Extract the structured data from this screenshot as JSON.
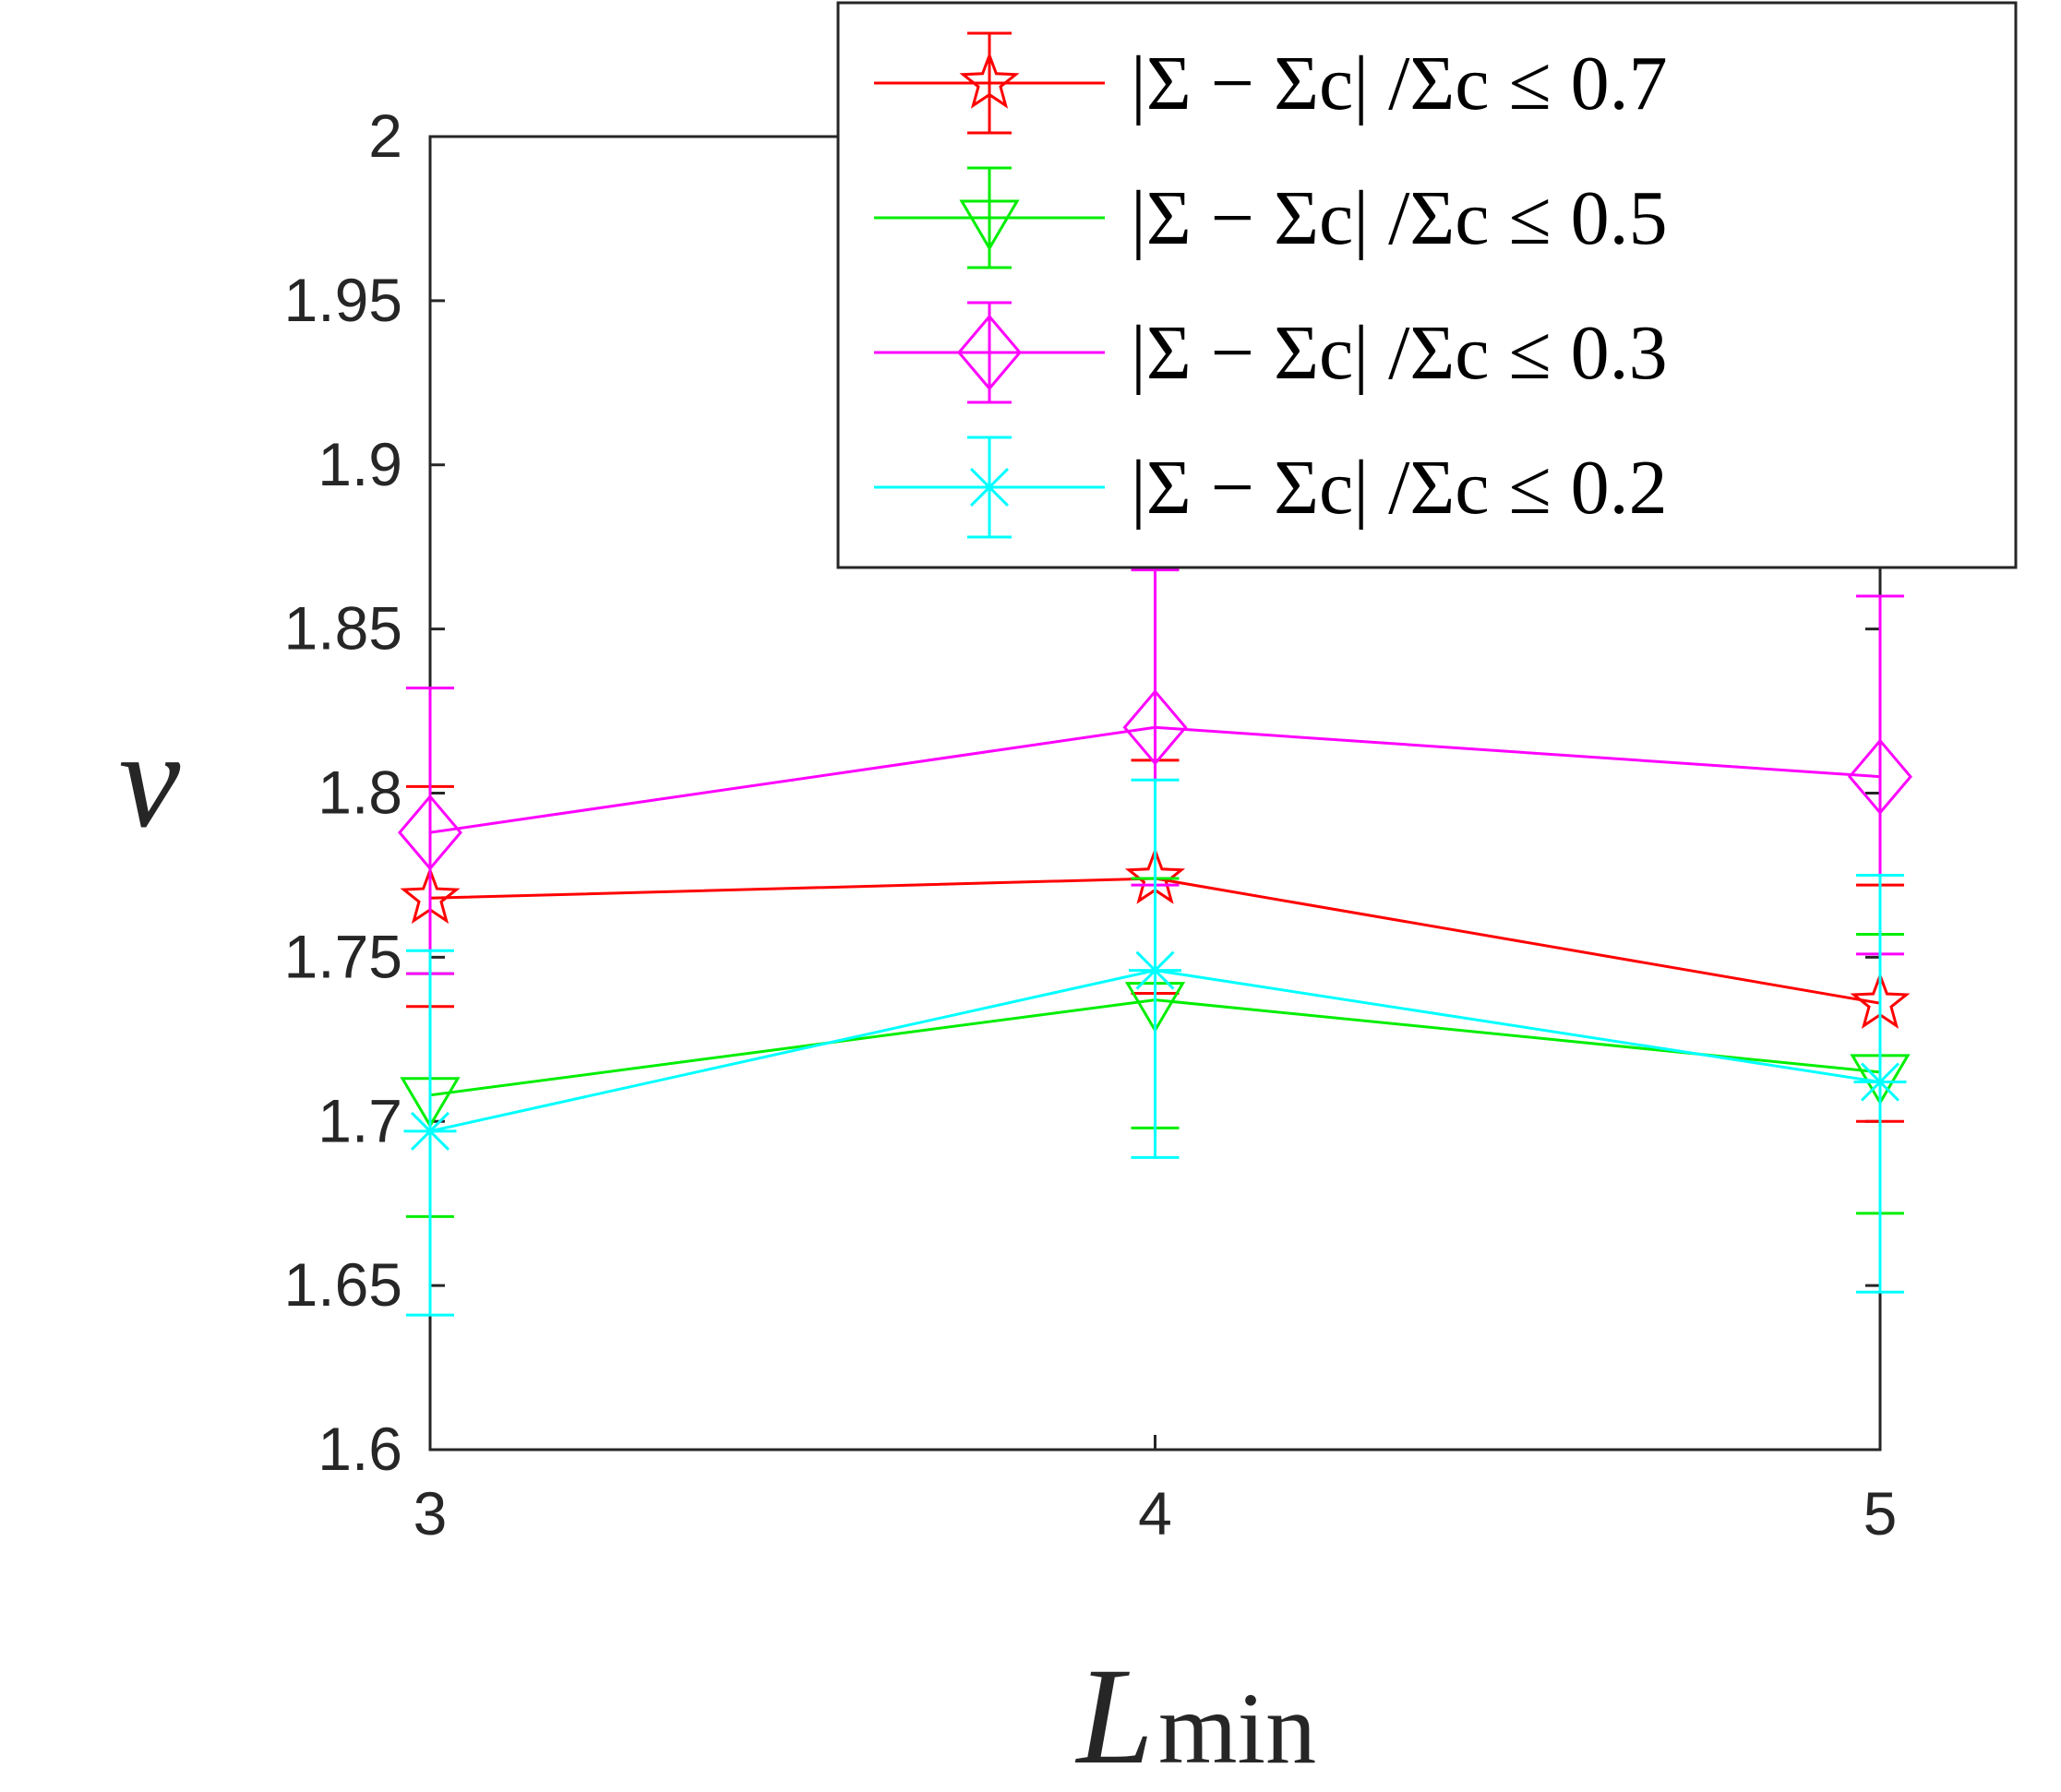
{
  "chart_data": {
    "type": "line",
    "title": "",
    "xlabel": "L",
    "xlabel_subscript": "min",
    "ylabel": "ν",
    "xlim": [
      3,
      5
    ],
    "ylim": [
      1.6,
      2.0
    ],
    "xticks": [
      "3",
      "4",
      "5"
    ],
    "yticks": [
      "1.6",
      "1.65",
      "1.7",
      "1.75",
      "1.8",
      "1.85",
      "1.9",
      "1.95",
      "2"
    ],
    "grid": false,
    "legend_position": "top-right",
    "x": [
      3,
      4,
      5
    ],
    "series": [
      {
        "name": "|Σ − Σc| /Σc ≤ 0.7",
        "color": "#ff0000",
        "marker": "star",
        "values": [
          1.768,
          1.774,
          1.736
        ],
        "err_low": [
          1.735,
          1.739,
          1.7
        ],
        "err_high": [
          1.802,
          1.81,
          1.772
        ]
      },
      {
        "name": "|Σ − Σc| /Σc ≤ 0.5",
        "color": "#00ee00",
        "marker": "triangle-down",
        "values": [
          1.708,
          1.737,
          1.715
        ],
        "err_low": [
          1.671,
          1.698,
          1.672
        ],
        "err_high": [
          1.745,
          1.774,
          1.757
        ]
      },
      {
        "name": "|Σ − Σc| /Σc ≤ 0.3",
        "color": "#ff00ff",
        "marker": "diamond",
        "values": [
          1.788,
          1.82,
          1.805
        ],
        "err_low": [
          1.745,
          1.772,
          1.751
        ],
        "err_high": [
          1.832,
          1.868,
          1.86
        ]
      },
      {
        "name": "|Σ − Σc| /Σc ≤ 0.2",
        "color": "#00ffff",
        "marker": "asterisk",
        "values": [
          1.697,
          1.746,
          1.712
        ],
        "err_low": [
          1.641,
          1.689,
          1.648
        ],
        "err_high": [
          1.752,
          1.804,
          1.775
        ]
      }
    ]
  }
}
